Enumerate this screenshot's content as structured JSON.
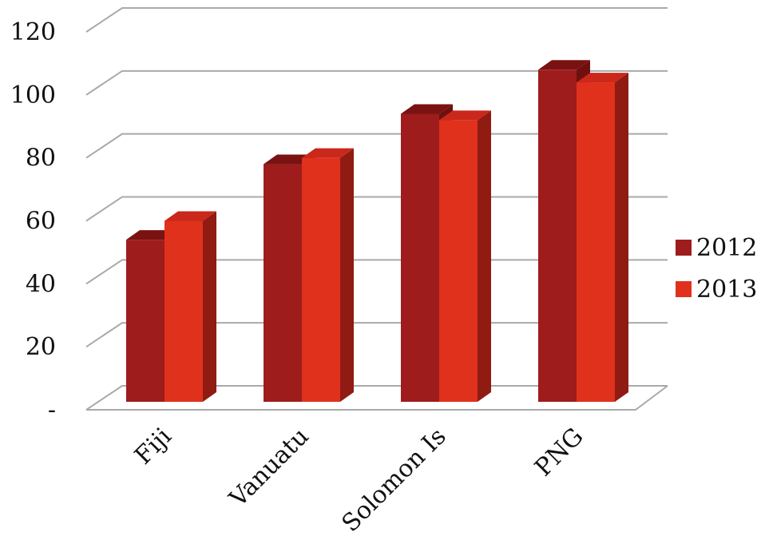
{
  "chart_data": {
    "type": "bar",
    "categories": [
      "Fiji",
      "Vanuatu",
      "Solomon Is",
      "PNG"
    ],
    "series": [
      {
        "name": "2012",
        "values": [
          54,
          78,
          94,
          108
        ],
        "color": "#9e1c1c",
        "top_color": "#7a1212",
        "side_color": "#6e1010"
      },
      {
        "name": "2013",
        "values": [
          60,
          80,
          92,
          104
        ],
        "color": "#e0311d",
        "top_color": "#c9281a",
        "side_color": "#8f1b12"
      }
    ],
    "ylim": [
      0,
      120
    ],
    "yticks": [
      {
        "value": 0,
        "label": "-"
      },
      {
        "value": 20,
        "label": "20"
      },
      {
        "value": 40,
        "label": "40"
      },
      {
        "value": 60,
        "label": "60"
      },
      {
        "value": 80,
        "label": "80"
      },
      {
        "value": 100,
        "label": "100"
      },
      {
        "value": 120,
        "label": "120"
      }
    ],
    "grid": true,
    "legend_position": "right",
    "title": "",
    "xlabel": "",
    "ylabel": ""
  }
}
